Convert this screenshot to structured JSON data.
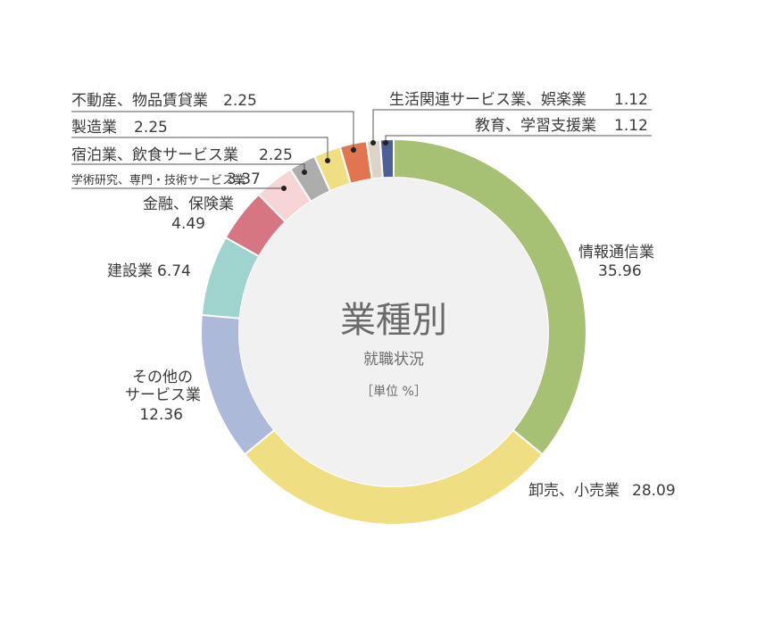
{
  "chart_data": {
    "type": "pie",
    "donut": true,
    "center_title": "業種別",
    "center_subtitle": "就職状況",
    "unit_label": "［単位 %］",
    "slices": [
      {
        "label": "情報通信業",
        "value": 35.96,
        "value_text": "35.96",
        "color": "#a7c174"
      },
      {
        "label": "卸売、小売業",
        "value": 28.09,
        "value_text": "28.09",
        "color": "#f0df82"
      },
      {
        "label": "その他のサービス業",
        "value": 12.36,
        "value_text": "12.36",
        "color": "#acb9d9"
      },
      {
        "label": "建設業",
        "value": 6.74,
        "value_text": "6.74",
        "color": "#9fd3cd"
      },
      {
        "label": "金融、保険業",
        "value": 4.49,
        "value_text": "4.49",
        "color": "#d77683"
      },
      {
        "label": "学術研究、専門・技術サービス業",
        "value": 3.37,
        "value_text": "3.37",
        "color": "#f7d4d6"
      },
      {
        "label": "宿泊業、飲食サービス業",
        "value": 2.25,
        "value_text": "2.25",
        "color": "#adadad"
      },
      {
        "label": "製造業",
        "value": 2.25,
        "value_text": "2.25",
        "color": "#f0df82"
      },
      {
        "label": "不動産、物品賃貸業",
        "value": 2.25,
        "value_text": "2.25",
        "color": "#e07550"
      },
      {
        "label": "生活関連サービス業、娯楽業",
        "value": 1.12,
        "value_text": "1.12",
        "color": "#ddd4c8"
      },
      {
        "label": "教育、学習支援業",
        "value": 1.12,
        "value_text": "1.12",
        "color": "#4d5f99"
      }
    ]
  }
}
